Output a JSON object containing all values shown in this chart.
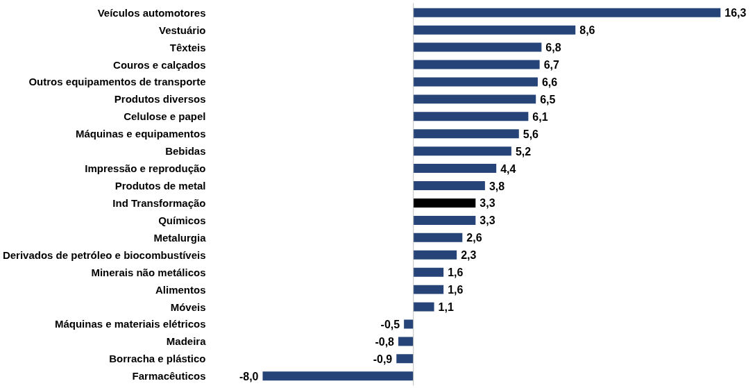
{
  "chart_data": {
    "type": "bar",
    "orientation": "horizontal",
    "categories": [
      "Veículos automotores",
      "Vestuário",
      "Têxteis",
      "Couros e calçados",
      "Outros equipamentos de transporte",
      "Produtos diversos",
      "Celulose e papel",
      "Máquinas e equipamentos",
      "Bebidas",
      "Impressão e reprodução",
      "Produtos de metal",
      "Ind Transformação",
      "Químicos",
      "Metalurgia",
      "Derivados de petróleo e biocombustíveis",
      "Minerais não metálicos",
      "Alimentos",
      "Móveis",
      "Máquinas e materiais elétricos",
      "Madeira",
      "Borracha e plástico",
      "Farmacêuticos"
    ],
    "values": [
      16.3,
      8.6,
      6.8,
      6.7,
      6.6,
      6.5,
      6.1,
      5.6,
      5.2,
      4.4,
      3.8,
      3.3,
      3.3,
      2.6,
      2.3,
      1.6,
      1.6,
      1.1,
      -0.5,
      -0.8,
      -0.9,
      -8.0
    ],
    "value_labels": [
      "16,3",
      "8,6",
      "6,8",
      "6,7",
      "6,6",
      "6,5",
      "6,1",
      "5,6",
      "5,2",
      "4,4",
      "3,8",
      "3,3",
      "3,3",
      "2,6",
      "2,3",
      "1,6",
      "1,6",
      "1,1",
      "-0,5",
      "-0,8",
      "-0,9",
      "-8,0"
    ],
    "colors": [
      "#264478",
      "#264478",
      "#264478",
      "#264478",
      "#264478",
      "#264478",
      "#264478",
      "#264478",
      "#264478",
      "#264478",
      "#264478",
      "#000000",
      "#264478",
      "#264478",
      "#264478",
      "#264478",
      "#264478",
      "#264478",
      "#264478",
      "#264478",
      "#264478",
      "#264478"
    ],
    "tick_labels": "y",
    "grid": false
  }
}
